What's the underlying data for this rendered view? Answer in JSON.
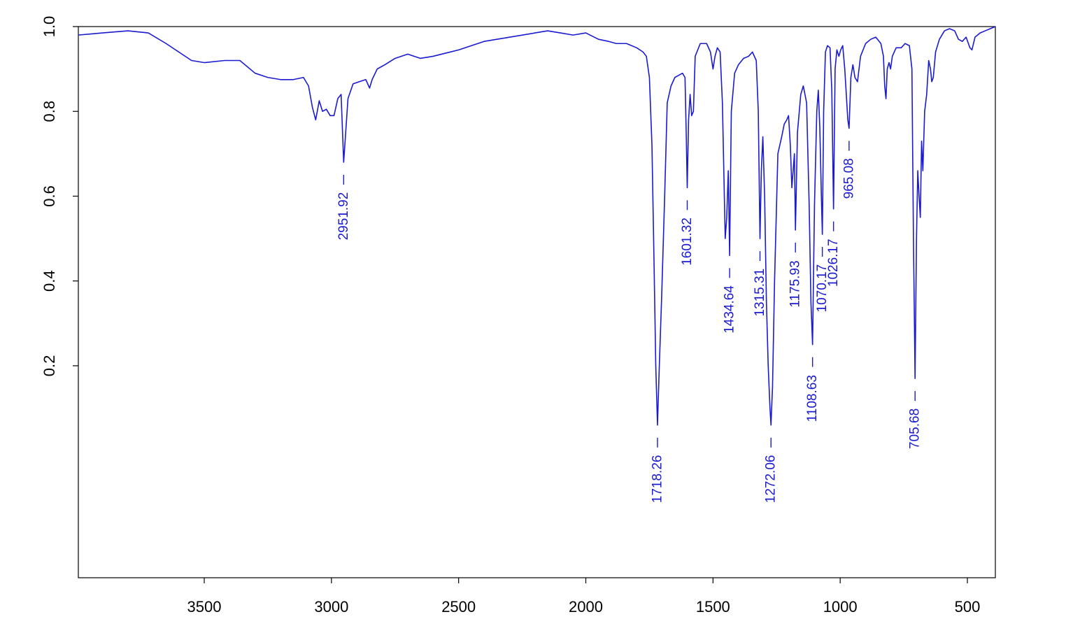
{
  "chart_data": {
    "type": "line",
    "title": "",
    "xlabel": "",
    "ylabel": "",
    "xlim": [
      3995,
      390
    ],
    "ylim": [
      -0.3,
      1.0
    ],
    "x_reversed": true,
    "grid": false,
    "line_color": "#1a1ad0",
    "x_ticks": [
      {
        "value": 3500,
        "label": "3500"
      },
      {
        "value": 3000,
        "label": "3000"
      },
      {
        "value": 2500,
        "label": "2500"
      },
      {
        "value": 2000,
        "label": "2000"
      },
      {
        "value": 1500,
        "label": "1500"
      },
      {
        "value": 1000,
        "label": "1000"
      },
      {
        "value": 500,
        "label": "500"
      }
    ],
    "y_ticks": [
      {
        "value": 0.2,
        "label": "0.2"
      },
      {
        "value": 0.4,
        "label": "0.4"
      },
      {
        "value": 0.6,
        "label": "0.6"
      },
      {
        "value": 0.8,
        "label": "0.8"
      },
      {
        "value": 1.0,
        "label": "1.0"
      }
    ],
    "series": [
      {
        "points": [
          [
            3995,
            0.98
          ],
          [
            3900,
            0.985
          ],
          [
            3800,
            0.99
          ],
          [
            3720,
            0.985
          ],
          [
            3650,
            0.96
          ],
          [
            3600,
            0.94
          ],
          [
            3550,
            0.92
          ],
          [
            3500,
            0.915
          ],
          [
            3420,
            0.92
          ],
          [
            3360,
            0.92
          ],
          [
            3300,
            0.89
          ],
          [
            3250,
            0.88
          ],
          [
            3200,
            0.875
          ],
          [
            3150,
            0.875
          ],
          [
            3110,
            0.88
          ],
          [
            3090,
            0.86
          ],
          [
            3075,
            0.81
          ],
          [
            3062,
            0.78
          ],
          [
            3048,
            0.825
          ],
          [
            3035,
            0.8
          ],
          [
            3020,
            0.805
          ],
          [
            3005,
            0.79
          ],
          [
            2990,
            0.79
          ],
          [
            2975,
            0.83
          ],
          [
            2962,
            0.84
          ],
          [
            2951.92,
            0.68
          ],
          [
            2935,
            0.83
          ],
          [
            2915,
            0.865
          ],
          [
            2890,
            0.87
          ],
          [
            2865,
            0.875
          ],
          [
            2850,
            0.855
          ],
          [
            2840,
            0.875
          ],
          [
            2820,
            0.9
          ],
          [
            2790,
            0.91
          ],
          [
            2750,
            0.925
          ],
          [
            2700,
            0.935
          ],
          [
            2650,
            0.925
          ],
          [
            2600,
            0.93
          ],
          [
            2500,
            0.945
          ],
          [
            2400,
            0.965
          ],
          [
            2300,
            0.975
          ],
          [
            2200,
            0.985
          ],
          [
            2150,
            0.99
          ],
          [
            2100,
            0.985
          ],
          [
            2050,
            0.98
          ],
          [
            2000,
            0.985
          ],
          [
            1950,
            0.97
          ],
          [
            1910,
            0.965
          ],
          [
            1880,
            0.96
          ],
          [
            1840,
            0.96
          ],
          [
            1800,
            0.95
          ],
          [
            1775,
            0.94
          ],
          [
            1762,
            0.93
          ],
          [
            1750,
            0.88
          ],
          [
            1740,
            0.72
          ],
          [
            1732,
            0.45
          ],
          [
            1725,
            0.2
          ],
          [
            1718.26,
            0.06
          ],
          [
            1711,
            0.2
          ],
          [
            1702,
            0.36
          ],
          [
            1690,
            0.6
          ],
          [
            1680,
            0.82
          ],
          [
            1665,
            0.86
          ],
          [
            1650,
            0.88
          ],
          [
            1635,
            0.885
          ],
          [
            1620,
            0.89
          ],
          [
            1610,
            0.88
          ],
          [
            1605,
            0.74
          ],
          [
            1601.32,
            0.62
          ],
          [
            1596,
            0.78
          ],
          [
            1590,
            0.84
          ],
          [
            1584,
            0.79
          ],
          [
            1577,
            0.8
          ],
          [
            1570,
            0.93
          ],
          [
            1550,
            0.96
          ],
          [
            1525,
            0.96
          ],
          [
            1510,
            0.94
          ],
          [
            1500,
            0.9
          ],
          [
            1492,
            0.93
          ],
          [
            1483,
            0.95
          ],
          [
            1472,
            0.94
          ],
          [
            1463,
            0.82
          ],
          [
            1452,
            0.5
          ],
          [
            1446,
            0.55
          ],
          [
            1440,
            0.66
          ],
          [
            1434.64,
            0.46
          ],
          [
            1428,
            0.8
          ],
          [
            1415,
            0.89
          ],
          [
            1400,
            0.91
          ],
          [
            1380,
            0.925
          ],
          [
            1360,
            0.93
          ],
          [
            1345,
            0.94
          ],
          [
            1330,
            0.92
          ],
          [
            1322,
            0.8
          ],
          [
            1315.31,
            0.5
          ],
          [
            1310,
            0.66
          ],
          [
            1304,
            0.74
          ],
          [
            1297,
            0.6
          ],
          [
            1290,
            0.35
          ],
          [
            1283,
            0.2
          ],
          [
            1276,
            0.1
          ],
          [
            1272.06,
            0.06
          ],
          [
            1266,
            0.15
          ],
          [
            1258,
            0.4
          ],
          [
            1245,
            0.7
          ],
          [
            1230,
            0.74
          ],
          [
            1220,
            0.77
          ],
          [
            1210,
            0.78
          ],
          [
            1203,
            0.79
          ],
          [
            1196,
            0.72
          ],
          [
            1190,
            0.62
          ],
          [
            1185,
            0.66
          ],
          [
            1180,
            0.7
          ],
          [
            1175.93,
            0.52
          ],
          [
            1168,
            0.75
          ],
          [
            1155,
            0.84
          ],
          [
            1145,
            0.86
          ],
          [
            1132,
            0.82
          ],
          [
            1122,
            0.58
          ],
          [
            1115,
            0.35
          ],
          [
            1108.63,
            0.25
          ],
          [
            1101,
            0.58
          ],
          [
            1092,
            0.8
          ],
          [
            1086,
            0.85
          ],
          [
            1080,
            0.76
          ],
          [
            1074,
            0.6
          ],
          [
            1070.17,
            0.51
          ],
          [
            1065,
            0.8
          ],
          [
            1058,
            0.94
          ],
          [
            1050,
            0.955
          ],
          [
            1040,
            0.95
          ],
          [
            1033,
            0.85
          ],
          [
            1026.17,
            0.57
          ],
          [
            1020,
            0.9
          ],
          [
            1013,
            0.945
          ],
          [
            1005,
            0.93
          ],
          [
            998,
            0.945
          ],
          [
            990,
            0.955
          ],
          [
            982,
            0.9
          ],
          [
            975,
            0.83
          ],
          [
            970,
            0.78
          ],
          [
            965.08,
            0.76
          ],
          [
            958,
            0.88
          ],
          [
            950,
            0.91
          ],
          [
            942,
            0.88
          ],
          [
            932,
            0.87
          ],
          [
            920,
            0.93
          ],
          [
            900,
            0.96
          ],
          [
            880,
            0.97
          ],
          [
            860,
            0.975
          ],
          [
            840,
            0.96
          ],
          [
            830,
            0.93
          ],
          [
            825,
            0.86
          ],
          [
            820,
            0.83
          ],
          [
            815,
            0.9
          ],
          [
            808,
            0.915
          ],
          [
            802,
            0.9
          ],
          [
            795,
            0.93
          ],
          [
            780,
            0.95
          ],
          [
            760,
            0.95
          ],
          [
            745,
            0.96
          ],
          [
            728,
            0.955
          ],
          [
            718,
            0.9
          ],
          [
            712,
            0.5
          ],
          [
            705.68,
            0.17
          ],
          [
            700,
            0.5
          ],
          [
            695,
            0.66
          ],
          [
            690,
            0.6
          ],
          [
            685,
            0.55
          ],
          [
            680,
            0.73
          ],
          [
            675,
            0.66
          ],
          [
            668,
            0.8
          ],
          [
            660,
            0.84
          ],
          [
            652,
            0.92
          ],
          [
            645,
            0.9
          ],
          [
            640,
            0.87
          ],
          [
            634,
            0.88
          ],
          [
            625,
            0.94
          ],
          [
            610,
            0.97
          ],
          [
            590,
            0.99
          ],
          [
            570,
            0.995
          ],
          [
            550,
            0.99
          ],
          [
            535,
            0.97
          ],
          [
            520,
            0.965
          ],
          [
            505,
            0.975
          ],
          [
            490,
            0.95
          ],
          [
            482,
            0.945
          ],
          [
            470,
            0.975
          ],
          [
            450,
            0.985
          ],
          [
            430,
            0.99
          ],
          [
            410,
            0.995
          ],
          [
            390,
            1.0
          ]
        ]
      }
    ],
    "peaks": [
      {
        "x": 2951.92,
        "y": 0.68,
        "label": "2951.92"
      },
      {
        "x": 1718.26,
        "y": 0.06,
        "label": "1718.26"
      },
      {
        "x": 1601.32,
        "y": 0.62,
        "label": "1601.32"
      },
      {
        "x": 1434.64,
        "y": 0.46,
        "label": "1434.64"
      },
      {
        "x": 1315.31,
        "y": 0.5,
        "label": "1315.31"
      },
      {
        "x": 1272.06,
        "y": 0.06,
        "label": "1272.06"
      },
      {
        "x": 1175.93,
        "y": 0.52,
        "label": "1175.93"
      },
      {
        "x": 1108.63,
        "y": 0.25,
        "label": "1108.63"
      },
      {
        "x": 1070.17,
        "y": 0.51,
        "label": "1070.17"
      },
      {
        "x": 1026.17,
        "y": 0.57,
        "label": "1026.17"
      },
      {
        "x": 965.08,
        "y": 0.76,
        "label": "965.08"
      },
      {
        "x": 705.68,
        "y": 0.17,
        "label": "705.68"
      }
    ]
  }
}
